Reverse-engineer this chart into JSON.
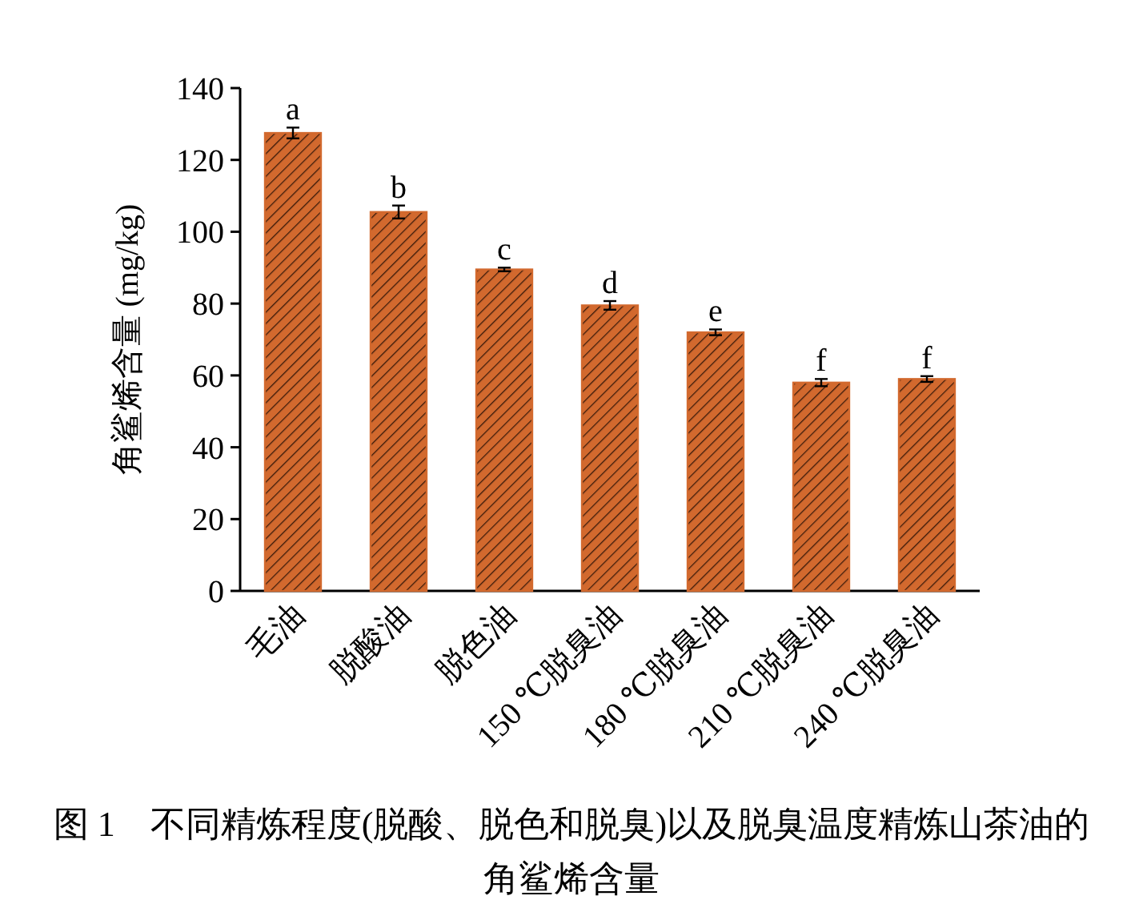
{
  "chart_data": {
    "type": "bar",
    "title": "图 1　不同精炼程度(脱酸、脱色和脱臭)以及脱臭温度精炼山茶油的角鲨烯含量",
    "ylabel": "角鲨烯含量 (mg/kg)",
    "categories": [
      "毛油",
      "脱酸油",
      "脱色油",
      "150 ℃脱臭油",
      "180 ℃脱臭油",
      "210 ℃脱臭油",
      "240 ℃脱臭油"
    ],
    "values": [
      127.5,
      105.5,
      89.5,
      79.5,
      72,
      58,
      59
    ],
    "errors": [
      1.5,
      1.8,
      0.5,
      1.2,
      0.8,
      1,
      0.8
    ],
    "color": "#d2692e",
    "ylim": [
      0,
      140
    ],
    "yticks": [
      0,
      20,
      40,
      60,
      80,
      100,
      120,
      140
    ],
    "annotations": [
      {
        "text": "a",
        "x": "毛油",
        "y": 129
      },
      {
        "text": "b",
        "x": "脱酸油",
        "y": 107.3
      },
      {
        "text": "c",
        "x": "脱色油",
        "y": 90
      },
      {
        "text": "d",
        "x": "150 ℃脱臭油",
        "y": 80.7
      },
      {
        "text": "e",
        "x": "180 ℃脱臭油",
        "y": 72.8
      },
      {
        "text": "f",
        "x": "210 ℃脱臭油",
        "y": 59
      },
      {
        "text": "f",
        "x": "240 ℃脱臭油",
        "y": 59.8
      }
    ]
  }
}
